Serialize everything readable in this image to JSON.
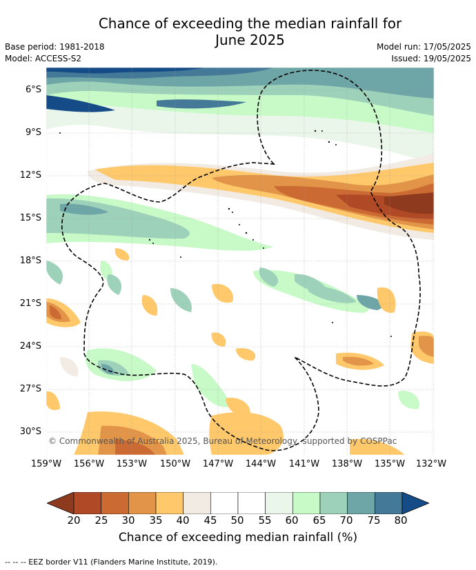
{
  "title_line1": "Chance of exceeding the median rainfall for",
  "title_line2": "June 2025",
  "meta": {
    "base_period": "Base period: 1981-2018",
    "model": "Model: ACCESS-S2",
    "model_run": "Model run: 17/05/2025",
    "issued": "Issued: 19/05/2025"
  },
  "lat_labels": [
    "6°S",
    "9°S",
    "12°S",
    "15°S",
    "18°S",
    "21°S",
    "24°S",
    "27°S",
    "30°S"
  ],
  "lon_labels": [
    "159°W",
    "156°W",
    "153°W",
    "150°W",
    "147°W",
    "144°W",
    "141°W",
    "138°W",
    "135°W",
    "132°W"
  ],
  "copyright": "© Commonwealth of Australia 2025, Bureau of Meteorology, supported by COSPPac",
  "colorbar": {
    "labels": [
      "20",
      "25",
      "30",
      "35",
      "40",
      "45",
      "50",
      "55",
      "60",
      "65",
      "70",
      "75",
      "80"
    ],
    "colors": [
      "#8e3a1e",
      "#b04a26",
      "#cb6a33",
      "#e29448",
      "#ffc86b",
      "#f1ebe4",
      "#ffffff",
      "#ffffff",
      "#eaf6ea",
      "#c8fac8",
      "#9ed1b9",
      "#6ea5a7",
      "#447a98",
      "#154c87"
    ],
    "title": "Chance of exceeding median rainfall (%)"
  },
  "footer": "--  --  -- EEZ border V11 (Flanders Marine Institute, 2019)."
}
